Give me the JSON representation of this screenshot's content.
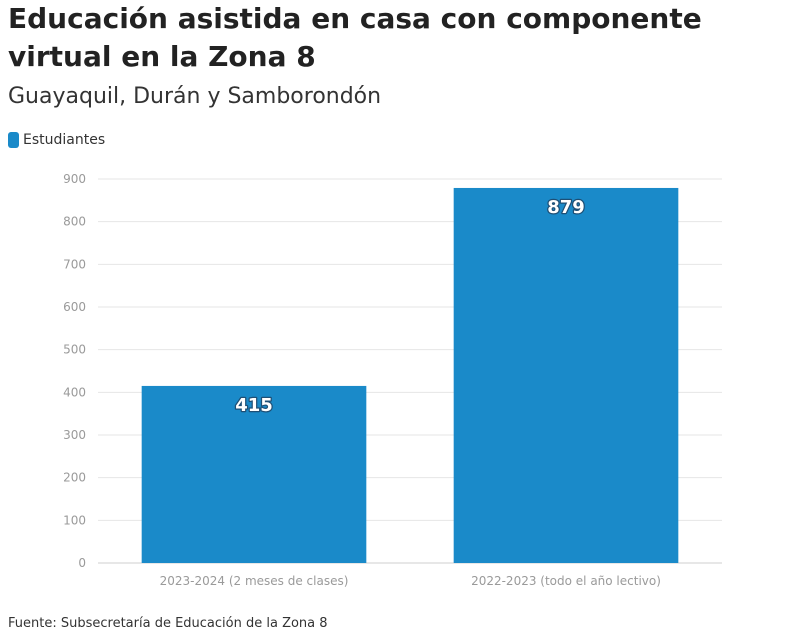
{
  "header": {
    "title": "Educación asistida en casa con componente virtual en la Zona 8",
    "subtitle": "Guayaquil, Durán y Samborondón"
  },
  "legend": {
    "label": "Estudiantes",
    "color": "#1a8ac9"
  },
  "footer": {
    "source": "Fuente: Subsecretaría de Educación de la Zona 8"
  },
  "chart_data": {
    "type": "bar",
    "title": "Educación asistida en casa con componente virtual en la Zona 8",
    "subtitle": "Guayaquil, Durán y Samborondón",
    "categories": [
      "2023-2024 (2 meses de clases)",
      "2022-2023 (todo el año lectivo)"
    ],
    "series": [
      {
        "name": "Estudiantes",
        "values": [
          415,
          879
        ],
        "color": "#1a8ac9"
      }
    ],
    "data_labels": [
      "415",
      "879"
    ],
    "xlabel": "",
    "ylabel": "",
    "ylim": [
      0,
      900
    ],
    "yticks": [
      0,
      100,
      200,
      300,
      400,
      500,
      600,
      700,
      800,
      900
    ],
    "grid": true,
    "legend_position": "top-left"
  }
}
